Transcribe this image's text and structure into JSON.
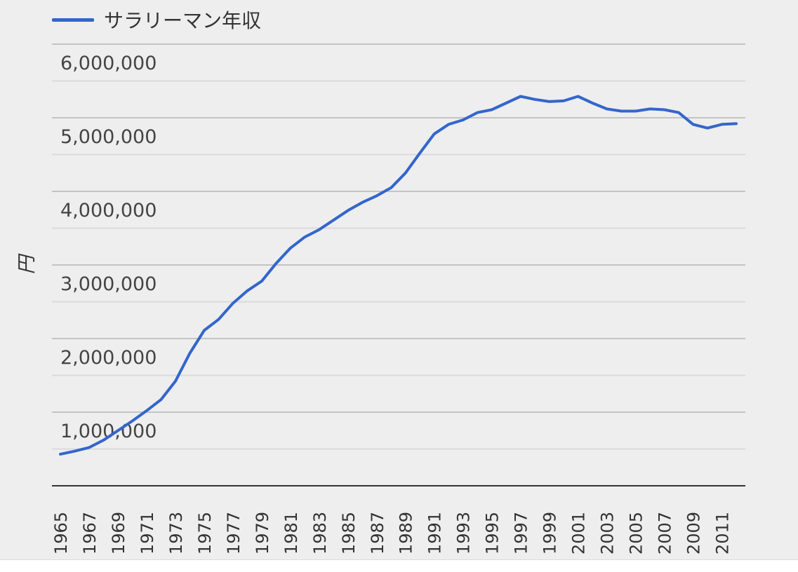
{
  "chart_data": {
    "type": "line",
    "title": "",
    "ylabel": "円",
    "xlabel": "",
    "legend_position": "top-left",
    "grid": true,
    "colors": {
      "line": "#3366cc",
      "background": "#eeeeee",
      "grid_major": "#c4c4c4",
      "grid_minor": "#dadada",
      "baseline": "#333333"
    },
    "ylim": [
      0,
      6000000
    ],
    "y_ticks": [
      1000000,
      2000000,
      3000000,
      4000000,
      5000000,
      6000000
    ],
    "y_tick_labels": [
      "1,000,000",
      "2,000,000",
      "3,000,000",
      "4,000,000",
      "5,000,000",
      "6,000,000"
    ],
    "x_tick_labels": [
      "1965",
      "1967",
      "1969",
      "1971",
      "1973",
      "1975",
      "1977",
      "1979",
      "1981",
      "1983",
      "1985",
      "1987",
      "1989",
      "1991",
      "1993",
      "1995",
      "1997",
      "1999",
      "2001",
      "2003",
      "2005",
      "2007",
      "2009",
      "2011"
    ],
    "series": [
      {
        "name": "サラリーマン年収",
        "x": [
          1965,
          1966,
          1967,
          1968,
          1969,
          1970,
          1971,
          1972,
          1973,
          1974,
          1975,
          1976,
          1977,
          1978,
          1979,
          1980,
          1981,
          1982,
          1983,
          1984,
          1985,
          1986,
          1987,
          1988,
          1989,
          1990,
          1991,
          1992,
          1993,
          1994,
          1995,
          1996,
          1997,
          1998,
          1999,
          2000,
          2001,
          2002,
          2003,
          2004,
          2005,
          2006,
          2007,
          2008,
          2009,
          2010,
          2011,
          2012
        ],
        "values": [
          430000,
          470000,
          520000,
          620000,
          750000,
          880000,
          1020000,
          1170000,
          1420000,
          1800000,
          2110000,
          2260000,
          2480000,
          2650000,
          2780000,
          3020000,
          3230000,
          3380000,
          3480000,
          3610000,
          3740000,
          3850000,
          3940000,
          4050000,
          4250000,
          4520000,
          4780000,
          4910000,
          4970000,
          5070000,
          5110000,
          5200000,
          5290000,
          5250000,
          5220000,
          5230000,
          5290000,
          5200000,
          5120000,
          5090000,
          5090000,
          5120000,
          5110000,
          5070000,
          4910000,
          4860000,
          4910000,
          4920000
        ]
      }
    ]
  }
}
